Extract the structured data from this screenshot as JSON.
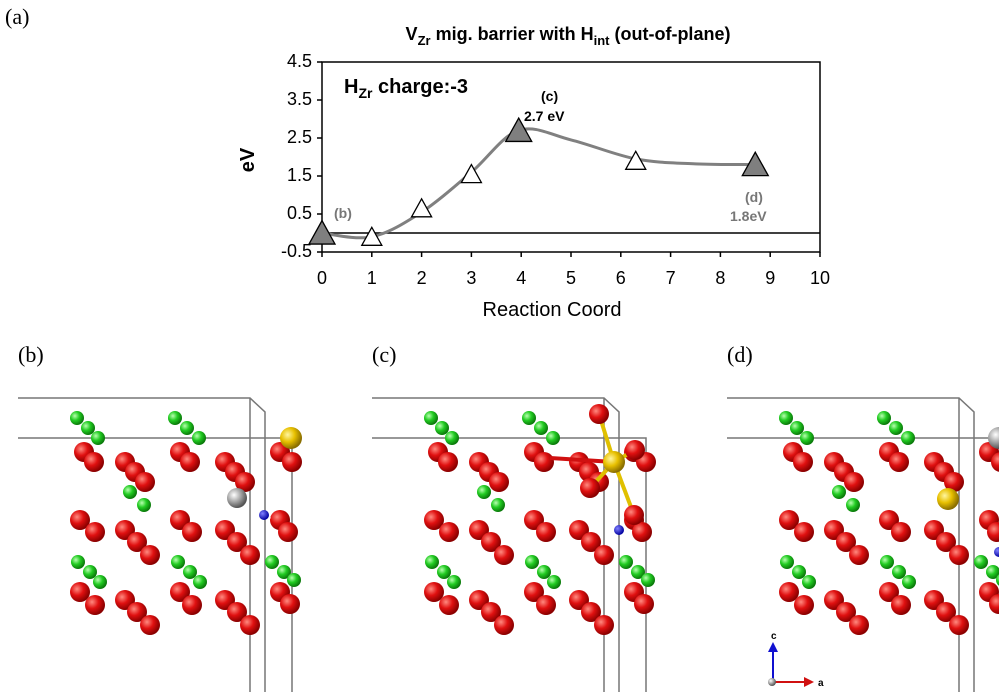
{
  "panel_labels": [
    "(a)",
    "(b)",
    "(c)",
    "(d)"
  ],
  "lattice_axes": [
    "c",
    "a"
  ],
  "chart_data": {
    "type": "line",
    "title": [
      "V",
      "Zr",
      " mig. barrier with H",
      "int",
      " (out-of-plane)"
    ],
    "xlabel": "Reaction Coord",
    "ylabel": "eV",
    "xlim": [
      0,
      10
    ],
    "xticks": [
      0,
      1,
      2,
      3,
      4,
      5,
      6,
      7,
      8,
      9,
      10
    ],
    "ylim": [
      -0.5,
      4.5
    ],
    "yticks": [
      -0.5,
      0.5,
      1.5,
      2.5,
      3.5,
      4.5
    ],
    "hline": 0,
    "annotations": {
      "charge": [
        "H",
        "Zr",
        " charge:-3"
      ],
      "b": "(b)",
      "c": "(c)",
      "c_energy": "2.7 eV",
      "d": "(d)",
      "d_energy": "1.8eV"
    },
    "series": [
      {
        "marker": "curve",
        "color": "#808080",
        "x": [
          0,
          1,
          2,
          3,
          3.95,
          5,
          6.3,
          7.5,
          8.7
        ],
        "values": [
          0,
          -0.1,
          0.55,
          1.6,
          2.7,
          2.45,
          1.95,
          1.82,
          1.8
        ]
      },
      {
        "marker": "triangle-open",
        "color": "#ffffff",
        "x": [
          1,
          2,
          3,
          6.3
        ],
        "values": [
          -0.1,
          0.65,
          1.55,
          1.9
        ]
      },
      {
        "marker": "triangle-filled",
        "color": "#7f7f7f",
        "x": [
          0,
          3.95,
          8.7
        ],
        "values": [
          0,
          2.7,
          1.8
        ]
      }
    ]
  }
}
